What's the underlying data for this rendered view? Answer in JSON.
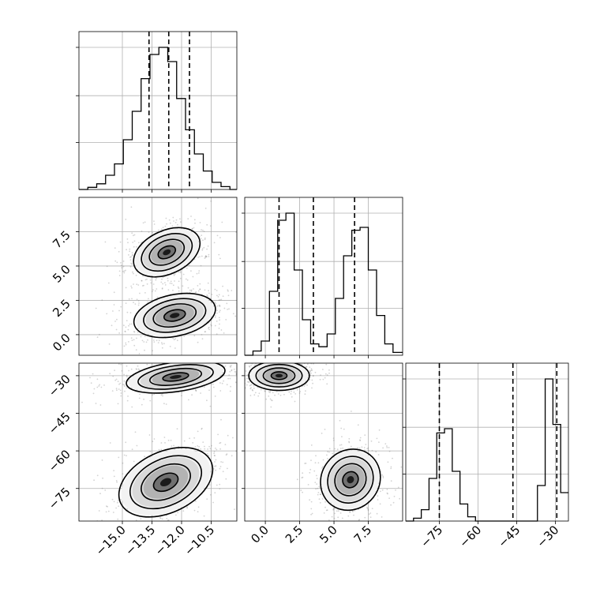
{
  "chart_data": {
    "type": "corner",
    "grid": true,
    "parameters": [
      {
        "range": [
          -17.2,
          -9.2
        ],
        "ticks": [
          -15.0,
          -13.5,
          -12.0,
          -10.5
        ],
        "tick_labels": [
          "−15.0",
          "−13.5",
          "−12.0",
          "−10.5"
        ]
      },
      {
        "range": [
          -1.5,
          10.0
        ],
        "ticks": [
          0.0,
          2.5,
          5.0,
          7.5
        ],
        "tick_labels": [
          "0.0",
          "2.5",
          "5.0",
          "7.5"
        ]
      },
      {
        "range": [
          -88,
          -25
        ],
        "ticks": [
          -75,
          -60,
          -45,
          -30
        ],
        "tick_labels": [
          "−75",
          "−60",
          "−45",
          "−30"
        ]
      }
    ],
    "histograms": [
      {
        "parameter": 0,
        "bin_edges": [
          -17.2,
          -16.75,
          -16.3,
          -15.85,
          -15.4,
          -14.95,
          -14.5,
          -14.05,
          -13.6,
          -13.15,
          -12.7,
          -12.25,
          -11.8,
          -11.35,
          -10.9,
          -10.45,
          -10.0,
          -9.55,
          -9.2
        ],
        "counts": [
          0.0,
          0.015,
          0.04,
          0.1,
          0.18,
          0.35,
          0.55,
          0.78,
          0.95,
          1.0,
          0.9,
          0.64,
          0.42,
          0.25,
          0.13,
          0.05,
          0.02,
          0.0
        ],
        "quantiles": [
          -13.65,
          -12.65,
          -11.6
        ]
      },
      {
        "parameter": 1,
        "bin_edges": [
          -1.5,
          -0.9,
          -0.3,
          0.3,
          0.9,
          1.5,
          2.1,
          2.7,
          3.3,
          3.9,
          4.5,
          5.1,
          5.7,
          6.3,
          6.9,
          7.5,
          8.1,
          8.7,
          9.3,
          10.0
        ],
        "counts": [
          0.0,
          0.03,
          0.1,
          0.45,
          0.95,
          1.0,
          0.6,
          0.25,
          0.08,
          0.06,
          0.15,
          0.4,
          0.7,
          0.88,
          0.9,
          0.6,
          0.28,
          0.08,
          0.02
        ],
        "quantiles": [
          1.0,
          3.5,
          6.5
        ]
      },
      {
        "parameter": 2,
        "bin_edges": [
          -88,
          -85,
          -82,
          -79,
          -76,
          -73,
          -70,
          -67,
          -64,
          -61,
          -58,
          -55,
          -52,
          -49,
          -46,
          -43,
          -40,
          -37,
          -34,
          -31,
          -28,
          -25
        ],
        "counts": [
          0.0,
          0.02,
          0.08,
          0.3,
          0.62,
          0.65,
          0.35,
          0.12,
          0.03,
          0.0,
          0.0,
          0.0,
          0.0,
          0.0,
          0.0,
          0.0,
          0.0,
          0.25,
          1.0,
          0.68,
          0.2
        ],
        "quantiles": [
          -75.0,
          -46.5,
          -29.5
        ]
      }
    ],
    "joint": [
      {
        "x_param": 0,
        "y_param": 1,
        "modes": [
          {
            "center": [
              -12.75,
              6.0
            ],
            "spread": [
              0.85,
              0.75
            ],
            "rotation_deg": -25
          },
          {
            "center": [
              -12.35,
              1.4
            ],
            "spread": [
              1.0,
              0.72
            ],
            "rotation_deg": -12
          }
        ]
      },
      {
        "x_param": 0,
        "y_param": 2,
        "modes": [
          {
            "center": [
              -12.3,
              -30.5
            ],
            "spread": [
              1.2,
              2.8
            ],
            "rotation_deg": -8
          },
          {
            "center": [
              -12.8,
              -72.5
            ],
            "spread": [
              1.2,
              5.8
            ],
            "rotation_deg": -25
          }
        ]
      },
      {
        "x_param": 1,
        "y_param": 2,
        "modes": [
          {
            "center": [
              1.0,
              -30.0
            ],
            "spread": [
              1.05,
              2.8
            ],
            "rotation_deg": 0
          },
          {
            "center": [
              6.2,
              -71.5
            ],
            "spread": [
              1.0,
              6.0
            ],
            "rotation_deg": 38
          }
        ]
      }
    ]
  }
}
